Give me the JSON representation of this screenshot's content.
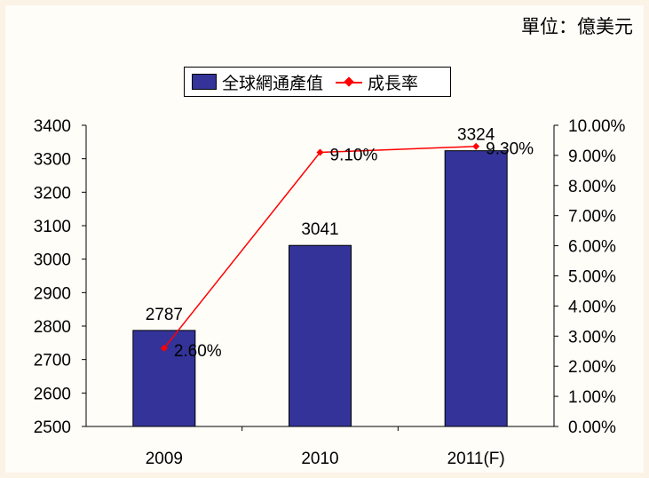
{
  "unit_label": "單位：億美元",
  "colors": {
    "bar": "#333399",
    "line": "#ff0000"
  },
  "chart_data": {
    "type": "bar",
    "categories": [
      "2009",
      "2010",
      "2011(F)"
    ],
    "series": [
      {
        "name": "全球網通產值",
        "type": "bar",
        "axis": "left",
        "values": [
          2787,
          3041,
          3324
        ],
        "data_labels": [
          "2787",
          "3041",
          "3324"
        ]
      },
      {
        "name": "成長率",
        "type": "line",
        "axis": "right",
        "values": [
          2.6,
          9.1,
          9.3
        ],
        "data_labels": [
          "2.60%",
          "9.10%",
          "9.30%"
        ]
      }
    ],
    "y_left": {
      "min": 2500,
      "max": 3400,
      "step": 100,
      "ticks": [
        "2500",
        "2600",
        "2700",
        "2800",
        "2900",
        "3000",
        "3100",
        "3200",
        "3300",
        "3400"
      ]
    },
    "y_right": {
      "min": 0,
      "max": 10,
      "step": 1,
      "ticks": [
        "0.00%",
        "1.00%",
        "2.00%",
        "3.00%",
        "4.00%",
        "5.00%",
        "6.00%",
        "7.00%",
        "8.00%",
        "9.00%",
        "10.00%"
      ]
    },
    "legend_position": "top",
    "grid": false
  }
}
